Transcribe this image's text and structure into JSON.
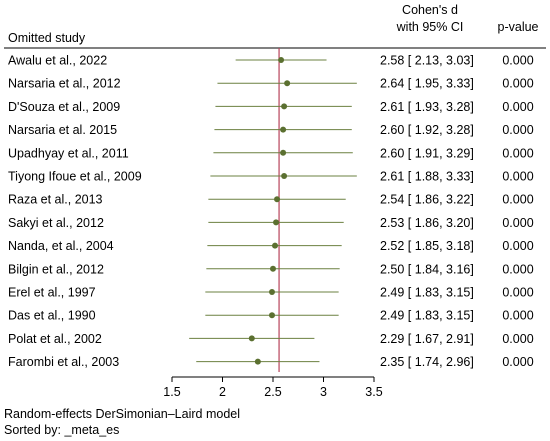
{
  "chart_data": {
    "type": "forest",
    "headers": {
      "study": "Omitted study",
      "effect_line1": "Cohen's d",
      "effect_line2": "with 95% CI",
      "pvalue": "p-value"
    },
    "xlim": [
      1.5,
      3.5
    ],
    "xticks": [
      1.5,
      2,
      2.5,
      3,
      3.5
    ],
    "xtick_labels": [
      "1.5",
      "2",
      "2.5",
      "3",
      "3.5"
    ],
    "overall_line": 2.56,
    "rows": [
      {
        "study": "Awalu et al., 2022",
        "es": 2.58,
        "lo": 2.13,
        "hi": 3.03,
        "ci": "2.58 [ 2.13,  3.03]",
        "p": "0.000"
      },
      {
        "study": "Narsaria et al., 2012",
        "es": 2.64,
        "lo": 1.95,
        "hi": 3.33,
        "ci": "2.64 [ 1.95,  3.33]",
        "p": "0.000"
      },
      {
        "study": "D'Souza et al., 2009",
        "es": 2.61,
        "lo": 1.93,
        "hi": 3.28,
        "ci": "2.61 [ 1.93,  3.28]",
        "p": "0.000"
      },
      {
        "study": "Narsaria et al. 2015",
        "es": 2.6,
        "lo": 1.92,
        "hi": 3.28,
        "ci": "2.60 [ 1.92,  3.28]",
        "p": "0.000"
      },
      {
        "study": "Upadhyay et al., 2011",
        "es": 2.6,
        "lo": 1.91,
        "hi": 3.29,
        "ci": "2.60 [ 1.91,  3.29]",
        "p": "0.000"
      },
      {
        "study": "Tiyong Ifoue et al., 2009",
        "es": 2.61,
        "lo": 1.88,
        "hi": 3.33,
        "ci": "2.61 [ 1.88,  3.33]",
        "p": "0.000"
      },
      {
        "study": "Raza et al., 2013",
        "es": 2.54,
        "lo": 1.86,
        "hi": 3.22,
        "ci": "2.54 [ 1.86,  3.22]",
        "p": "0.000"
      },
      {
        "study": "Sakyi et al., 2012",
        "es": 2.53,
        "lo": 1.86,
        "hi": 3.2,
        "ci": "2.53 [ 1.86,  3.20]",
        "p": "0.000"
      },
      {
        "study": "Nanda, et al., 2004",
        "es": 2.52,
        "lo": 1.85,
        "hi": 3.18,
        "ci": "2.52 [ 1.85,  3.18]",
        "p": "0.000"
      },
      {
        "study": "Bilgin et al., 2012",
        "es": 2.5,
        "lo": 1.84,
        "hi": 3.16,
        "ci": "2.50 [ 1.84,  3.16]",
        "p": "0.000"
      },
      {
        "study": "Erel et al., 1997",
        "es": 2.49,
        "lo": 1.83,
        "hi": 3.15,
        "ci": "2.49 [ 1.83,  3.15]",
        "p": "0.000"
      },
      {
        "study": "Das et al., 1990",
        "es": 2.49,
        "lo": 1.83,
        "hi": 3.15,
        "ci": "2.49 [ 1.83,  3.15]",
        "p": "0.000"
      },
      {
        "study": "Polat et al., 2002",
        "es": 2.29,
        "lo": 1.67,
        "hi": 2.91,
        "ci": "2.29 [ 1.67,  2.91]",
        "p": "0.000"
      },
      {
        "study": "Farombi et al., 2003",
        "es": 2.35,
        "lo": 1.74,
        "hi": 2.96,
        "ci": "2.35 [ 1.74,  2.96]",
        "p": "0.000"
      }
    ],
    "footnotes": [
      "Random-effects DerSimonian–Laird model",
      "Sorted by: _meta_es"
    ],
    "colors": {
      "marker": "#5b7030",
      "ci_line": "#6b8040",
      "overall_line": "#b8435a",
      "axis": "#000000",
      "rule": "#000000"
    }
  }
}
